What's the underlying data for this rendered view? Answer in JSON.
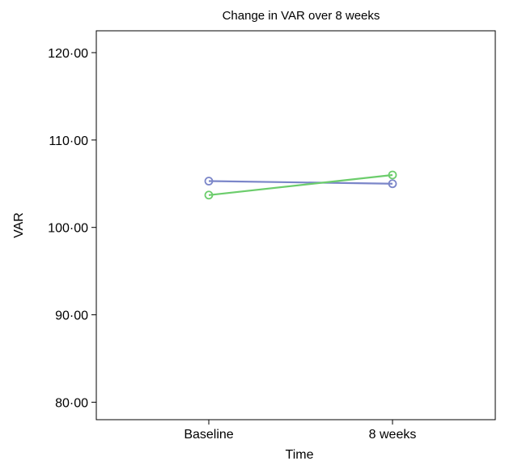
{
  "chart_data": {
    "type": "line",
    "title": "Change in VAR over 8 weeks",
    "xlabel": "Time",
    "ylabel": "VAR",
    "categories": [
      "Baseline",
      "8 weeks"
    ],
    "ylim": [
      78,
      122.5
    ],
    "yticks": [
      "80·00",
      "90·00",
      "100·00",
      "110·00",
      "120·00"
    ],
    "ytick_values": [
      80,
      90,
      100,
      110,
      120
    ],
    "grid": false,
    "series": [
      {
        "color": "#7b86c9",
        "values": [
          105.3,
          105.0
        ]
      },
      {
        "color": "#6ccd6c",
        "values": [
          103.7,
          106.0
        ]
      }
    ]
  }
}
